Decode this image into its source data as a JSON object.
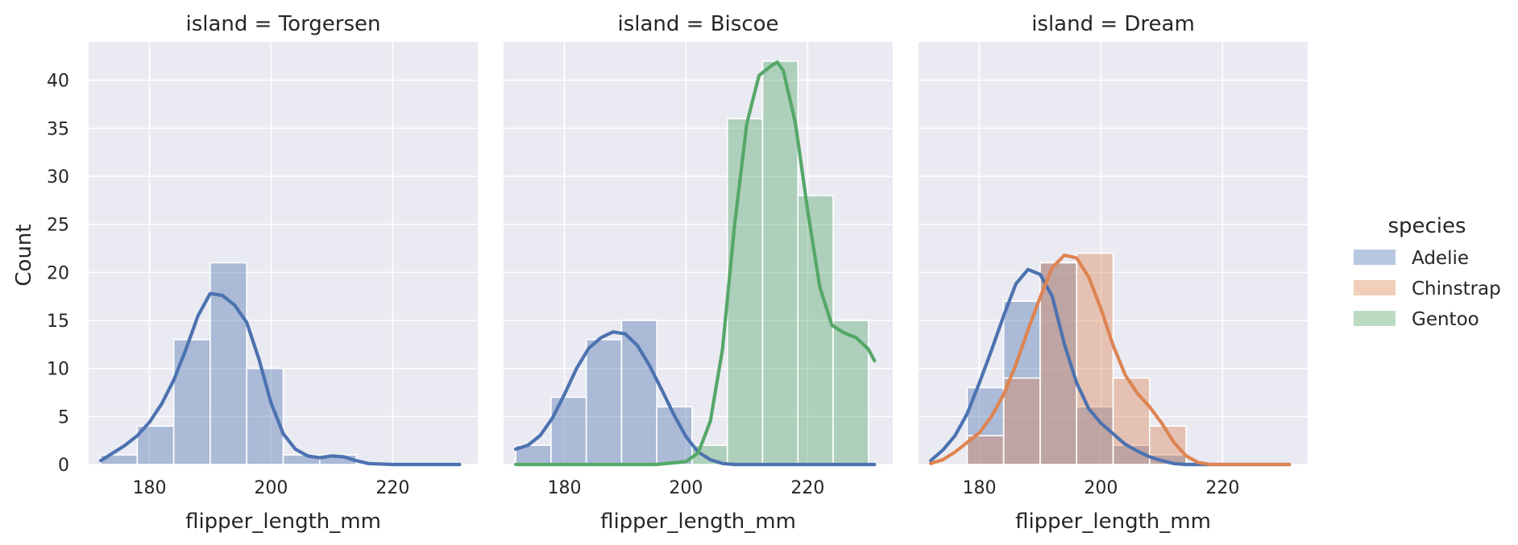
{
  "chart_data": {
    "type": "histogram-kde-facets",
    "ylabel": "Count",
    "ylim": [
      0,
      44
    ],
    "yticks": [
      0,
      5,
      10,
      15,
      20,
      25,
      30,
      35,
      40
    ],
    "xlim": [
      170,
      234
    ],
    "xticks": [
      180,
      200,
      220
    ],
    "grid": true,
    "legend": {
      "title": "species",
      "placement": "right",
      "entries": [
        {
          "name": "Adelie",
          "color": "#4c72b0"
        },
        {
          "name": "Chinstrap",
          "color": "#dd8452"
        },
        {
          "name": "Gentoo",
          "color": "#55a868"
        }
      ]
    },
    "panels": [
      {
        "title": "island = Torgersen",
        "xlabel": "flipper_length_mm",
        "histograms": [
          {
            "series": "Adelie",
            "bins": [
              {
                "x0": 172,
                "x1": 178,
                "count": 1
              },
              {
                "x0": 178,
                "x1": 184,
                "count": 4
              },
              {
                "x0": 184,
                "x1": 190,
                "count": 13
              },
              {
                "x0": 190,
                "x1": 196,
                "count": 21
              },
              {
                "x0": 196,
                "x1": 202,
                "count": 10
              },
              {
                "x0": 202,
                "x1": 208,
                "count": 1
              },
              {
                "x0": 208,
                "x1": 214,
                "count": 1
              }
            ]
          }
        ],
        "kde": [
          {
            "series": "Adelie",
            "x": [
              172,
              174,
              176,
              178,
              180,
              182,
              184,
              186,
              188,
              190,
              192,
              194,
              196,
              198,
              200,
              202,
              204,
              206,
              208,
              210,
              212,
              214,
              216,
              220,
              225,
              231
            ],
            "y": [
              0.4,
              1.2,
              2.0,
              3.0,
              4.4,
              6.3,
              8.8,
              12.0,
              15.5,
              17.8,
              17.6,
              16.6,
              14.8,
              11.0,
              6.4,
              3.2,
              1.6,
              0.9,
              0.7,
              0.9,
              0.8,
              0.4,
              0.1,
              0.0,
              0.0,
              0.0
            ]
          }
        ]
      },
      {
        "title": "island = Biscoe",
        "xlabel": "flipper_length_mm",
        "histograms": [
          {
            "series": "Adelie",
            "bins": [
              {
                "x0": 172,
                "x1": 177.8,
                "count": 2
              },
              {
                "x0": 177.8,
                "x1": 183.6,
                "count": 7
              },
              {
                "x0": 183.6,
                "x1": 189.4,
                "count": 13
              },
              {
                "x0": 189.4,
                "x1": 195.2,
                "count": 15
              },
              {
                "x0": 195.2,
                "x1": 201,
                "count": 6
              }
            ]
          },
          {
            "series": "Gentoo",
            "bins": [
              {
                "x0": 201,
                "x1": 206.8,
                "count": 2
              },
              {
                "x0": 206.8,
                "x1": 212.6,
                "count": 36
              },
              {
                "x0": 212.6,
                "x1": 218.4,
                "count": 42
              },
              {
                "x0": 218.4,
                "x1": 224.2,
                "count": 28
              },
              {
                "x0": 224.2,
                "x1": 230,
                "count": 15
              }
            ]
          }
        ],
        "kde": [
          {
            "series": "Adelie",
            "x": [
              172,
              174,
              176,
              178,
              180,
              182,
              184,
              186,
              188,
              190,
              192,
              194,
              196,
              198,
              200,
              202,
              204,
              206,
              208,
              214,
              220,
              231
            ],
            "y": [
              1.6,
              2.0,
              3.0,
              4.8,
              7.3,
              10.0,
              12.1,
              13.2,
              13.8,
              13.6,
              12.4,
              10.3,
              7.8,
              5.2,
              2.9,
              1.3,
              0.5,
              0.1,
              0.0,
              0.0,
              0.0,
              0.0
            ]
          }
        ],
        "kde_gentoo": [
          {
            "series": "Gentoo",
            "x": [
              172,
              195,
              200,
              202,
              204,
              206,
              208,
              210,
              212,
              214,
              215,
              216,
              218,
              220,
              222,
              224,
              226,
              228,
              230,
              231
            ],
            "y": [
              0,
              0,
              0.3,
              1.2,
              4.5,
              12.0,
              25.0,
              35.5,
              40.5,
              41.5,
              41.9,
              41.0,
              35.5,
              26.5,
              18.5,
              14.5,
              13.7,
              13.2,
              12.0,
              10.8
            ]
          }
        ]
      },
      {
        "title": "island = Dream",
        "xlabel": "flipper_length_mm",
        "histograms": [
          {
            "series": "Adelie",
            "bins": [
              {
                "x0": 178,
                "x1": 184,
                "count": 8
              },
              {
                "x0": 184,
                "x1": 190,
                "count": 17
              },
              {
                "x0": 190,
                "x1": 196,
                "count": 21
              },
              {
                "x0": 196,
                "x1": 202,
                "count": 6
              },
              {
                "x0": 202,
                "x1": 208,
                "count": 2
              },
              {
                "x0": 208,
                "x1": 214,
                "count": 1
              }
            ]
          },
          {
            "series": "Chinstrap",
            "bins": [
              {
                "x0": 178,
                "x1": 184,
                "count": 3
              },
              {
                "x0": 184,
                "x1": 190,
                "count": 9
              },
              {
                "x0": 190,
                "x1": 196,
                "count": 21
              },
              {
                "x0": 196,
                "x1": 202,
                "count": 22
              },
              {
                "x0": 202,
                "x1": 208,
                "count": 9
              },
              {
                "x0": 208,
                "x1": 214,
                "count": 4
              }
            ]
          }
        ],
        "kde": [
          {
            "series": "Adelie",
            "x": [
              172,
              174,
              176,
              178,
              180,
              182,
              184,
              186,
              188,
              190,
              192,
              194,
              196,
              198,
              200,
              202,
              204,
              206,
              208,
              210,
              212,
              214,
              218,
              231
            ],
            "y": [
              0.4,
              1.5,
              3.0,
              5.3,
              8.5,
              11.9,
              15.5,
              18.8,
              20.3,
              19.8,
              17.5,
              12.5,
              8.5,
              5.8,
              4.3,
              3.2,
              2.1,
              1.4,
              0.8,
              0.4,
              0.1,
              0.0,
              0.0,
              0.0
            ]
          }
        ],
        "kde_chinstrap": [
          {
            "series": "Chinstrap",
            "x": [
              172,
              174,
              176,
              178,
              180,
              182,
              184,
              186,
              188,
              190,
              192,
              194,
              196,
              198,
              200,
              202,
              204,
              206,
              208,
              210,
              212,
              214,
              216,
              218,
              220,
              231
            ],
            "y": [
              0.1,
              0.5,
              1.3,
              2.3,
              3.3,
              5.0,
              7.3,
              10.4,
              14.0,
              17.4,
              20.5,
              21.8,
              21.5,
              19.5,
              16.2,
              12.4,
              9.3,
              7.4,
              6.0,
              4.3,
              2.3,
              0.9,
              0.2,
              0.0,
              0.0,
              0.0
            ]
          }
        ]
      }
    ]
  }
}
